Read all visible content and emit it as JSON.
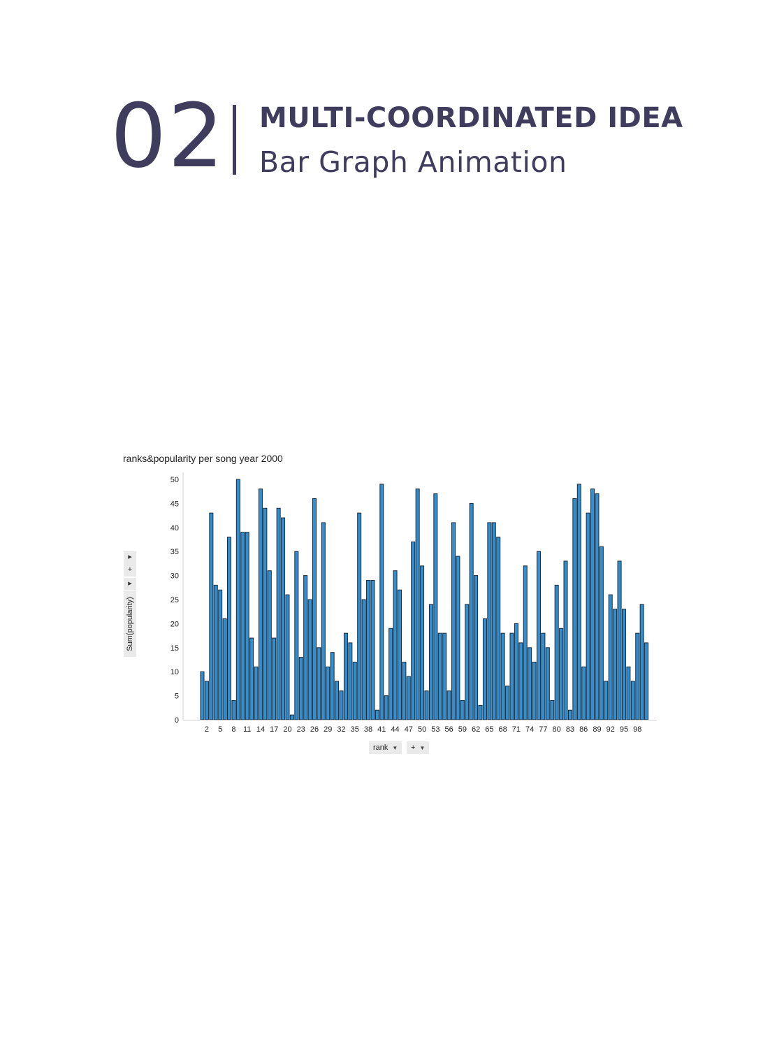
{
  "header": {
    "number": "02",
    "title": "MULTI-COORDINATED IDEA",
    "subtitle": "Bar Graph Animation"
  },
  "chart_controls": {
    "y_field": "Sum(popularity)",
    "x_field": "rank",
    "add_label": "+",
    "expand_arrow": "▸",
    "dropdown_arrow": "▼"
  },
  "colors": {
    "heading": "#3f3c5e",
    "bar_fill": "#2f8fd0",
    "bar_stroke": "#1d2a3a"
  },
  "chart_data": {
    "type": "bar",
    "title": "ranks&popularity per song year 2000",
    "xlabel": "rank",
    "ylabel": "Sum(popularity)",
    "ylim": [
      0,
      50
    ],
    "yticks": [
      0,
      5,
      10,
      15,
      20,
      25,
      30,
      35,
      40,
      45,
      50
    ],
    "xtick_labels": [
      "2",
      "5",
      "8",
      "11",
      "14",
      "17",
      "20",
      "23",
      "26",
      "29",
      "32",
      "35",
      "38",
      "41",
      "44",
      "47",
      "50",
      "53",
      "56",
      "59",
      "62",
      "65",
      "68",
      "71",
      "74",
      "77",
      "80",
      "83",
      "86",
      "89",
      "92",
      "95",
      "98"
    ],
    "grid": false,
    "categories": [
      1,
      2,
      3,
      4,
      5,
      6,
      7,
      8,
      9,
      10,
      11,
      12,
      13,
      14,
      15,
      16,
      17,
      18,
      19,
      20,
      21,
      22,
      23,
      24,
      25,
      26,
      27,
      28,
      29,
      30,
      31,
      32,
      33,
      34,
      35,
      36,
      37,
      38,
      39,
      40,
      41,
      42,
      43,
      44,
      45,
      46,
      47,
      48,
      49,
      50,
      51,
      52,
      53,
      54,
      55,
      56,
      57,
      58,
      59,
      60,
      61,
      62,
      63,
      64,
      65,
      66,
      67,
      68,
      69,
      70,
      71,
      72,
      73,
      74,
      75,
      76,
      77,
      78,
      79,
      80,
      81,
      82,
      83,
      84,
      85,
      86,
      87,
      88,
      89,
      90,
      91,
      92,
      93,
      94,
      95,
      96,
      97,
      98,
      99,
      100
    ],
    "values": [
      10,
      8,
      43,
      28,
      27,
      21,
      38,
      4,
      50,
      39,
      39,
      17,
      11,
      48,
      44,
      31,
      17,
      44,
      42,
      26,
      1,
      35,
      13,
      30,
      25,
      46,
      15,
      41,
      11,
      14,
      8,
      6,
      18,
      16,
      12,
      43,
      25,
      29,
      29,
      2,
      49,
      5,
      19,
      31,
      27,
      12,
      9,
      37,
      48,
      32,
      6,
      24,
      47,
      18,
      18,
      6,
      41,
      34,
      4,
      24,
      45,
      30,
      3,
      21,
      41,
      41,
      38,
      18,
      7,
      18,
      20,
      16,
      32,
      15,
      12,
      35,
      18,
      15,
      4,
      28,
      19,
      33,
      2,
      46,
      49,
      11,
      43,
      48,
      47,
      36,
      8,
      26,
      23,
      33,
      23,
      11,
      8,
      18,
      24,
      16
    ]
  }
}
